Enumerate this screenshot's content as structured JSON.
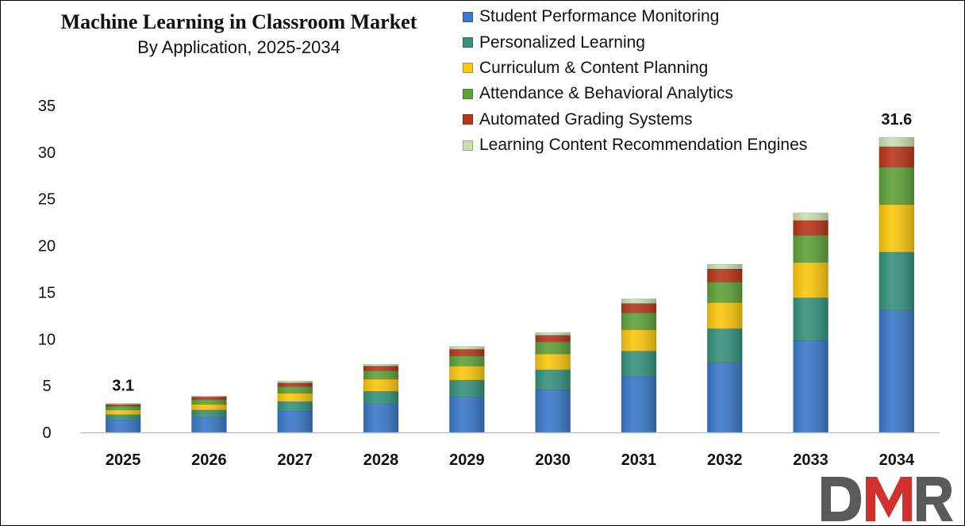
{
  "chart_data": {
    "type": "bar",
    "stacked": true,
    "title": "Machine Learning in Classroom Market",
    "subtitle": "By Application, 2025-2034",
    "xlabel": "",
    "ylabel": "",
    "ylim": [
      0,
      35
    ],
    "yticks": [
      0,
      5,
      10,
      15,
      20,
      25,
      30,
      35
    ],
    "grid": false,
    "legend_position": "top-right",
    "categories": [
      "2025",
      "2026",
      "2027",
      "2028",
      "2029",
      "2030",
      "2031",
      "2032",
      "2033",
      "2034"
    ],
    "series": [
      {
        "name": "Student Performance Monitoring",
        "color": "#3a78c9",
        "values": [
          1.3,
          1.6,
          2.3,
          3.0,
          3.8,
          4.6,
          6.0,
          7.5,
          9.8,
          13.1
        ]
      },
      {
        "name": "Personalized Learning",
        "color": "#35927c",
        "values": [
          0.6,
          0.8,
          1.0,
          1.4,
          1.8,
          2.1,
          2.7,
          3.6,
          4.6,
          6.2
        ]
      },
      {
        "name": "Curriculum & Content Planning",
        "color": "#fbc70d",
        "values": [
          0.5,
          0.6,
          0.9,
          1.3,
          1.5,
          1.7,
          2.3,
          2.8,
          3.8,
          5.1
        ]
      },
      {
        "name": "Attendance & Behavioral Analytics",
        "color": "#5da23a",
        "values": [
          0.4,
          0.5,
          0.7,
          0.9,
          1.1,
          1.3,
          1.8,
          2.2,
          2.9,
          4.0
        ]
      },
      {
        "name": "Automated Grading Systems",
        "color": "#b8361a",
        "values": [
          0.2,
          0.3,
          0.4,
          0.5,
          0.7,
          0.7,
          1.0,
          1.4,
          1.6,
          2.2
        ]
      },
      {
        "name": "Learning Content Recommendation Engines",
        "color": "#c9dfb0",
        "values": [
          0.1,
          0.1,
          0.2,
          0.2,
          0.3,
          0.3,
          0.5,
          0.5,
          0.8,
          1.0
        ]
      }
    ],
    "data_labels": [
      {
        "category": "2025",
        "text": "3.1"
      },
      {
        "category": "2034",
        "text": "31.6"
      }
    ]
  },
  "logo": {
    "text": "DMR",
    "colors": [
      "#5a5a5a",
      "#d0312d",
      "#5a5a5a"
    ]
  }
}
